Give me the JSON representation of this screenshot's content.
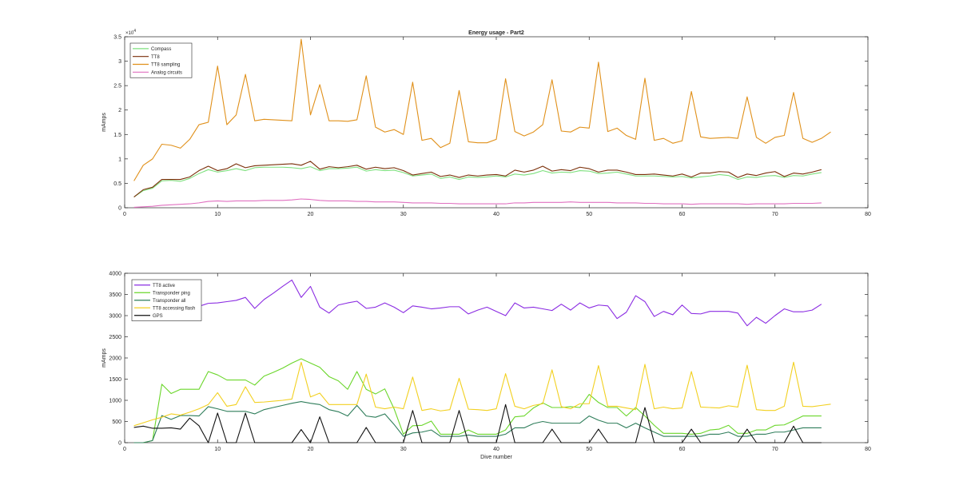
{
  "chart_data": [
    {
      "type": "line",
      "title": "Energy usage - Part2",
      "xlabel": "",
      "ylabel": "mAmps",
      "xlim": [
        0,
        80
      ],
      "ylim": [
        0,
        35000
      ],
      "xticks": [
        0,
        10,
        20,
        30,
        40,
        50,
        60,
        70,
        80
      ],
      "yticks": [
        0,
        5000,
        10000,
        15000,
        20000,
        25000,
        30000,
        35000
      ],
      "ytick_labels": [
        "0",
        "0.5",
        "1",
        "1.5",
        "2",
        "2.5",
        "3",
        "3.5"
      ],
      "yexponent_base": "×10",
      "yexponent_power": "4",
      "legend_position": "top-left",
      "grid": false,
      "x_start": 1,
      "series": [
        {
          "name": "Compass",
          "color": "#7ee07e",
          "values": [
            2200,
            3500,
            4000,
            5500,
            5600,
            5400,
            6000,
            7000,
            7800,
            7300,
            7600,
            8000,
            7600,
            8200,
            8300,
            8300,
            8300,
            8200,
            8000,
            8400,
            7600,
            8000,
            8000,
            8100,
            8300,
            7500,
            7800,
            7600,
            7700,
            7200,
            6500,
            6700,
            6900,
            6000,
            6300,
            5800,
            6300,
            6200,
            6300,
            6500,
            6300,
            6900,
            6700,
            7000,
            7600,
            7100,
            7300,
            7200,
            7600,
            7500,
            7000,
            7100,
            7300,
            6900,
            6500,
            6500,
            6500,
            6400,
            6300,
            6400,
            6100,
            6300,
            6500,
            6800,
            6600,
            5800,
            6300,
            6200,
            6500,
            6600,
            6200,
            6600,
            6500,
            6900,
            7200
          ]
        },
        {
          "name": "TT8",
          "color": "#7a2e08",
          "values": [
            2200,
            3700,
            4200,
            5800,
            5800,
            5800,
            6300,
            7600,
            8500,
            7600,
            8000,
            9000,
            8200,
            8600,
            8700,
            8800,
            8900,
            9000,
            8700,
            9500,
            7900,
            8400,
            8200,
            8400,
            8700,
            7900,
            8300,
            8000,
            8200,
            7600,
            6700,
            7000,
            7300,
            6400,
            6700,
            6200,
            6700,
            6500,
            6700,
            6800,
            6500,
            7700,
            7300,
            7700,
            8500,
            7500,
            7800,
            7600,
            8300,
            8000,
            7300,
            7700,
            7700,
            7300,
            6800,
            6800,
            6900,
            6700,
            6500,
            6900,
            6300,
            7100,
            7100,
            7400,
            7300,
            6200,
            6900,
            6600,
            7100,
            7400,
            6400,
            7100,
            6900,
            7300,
            7800
          ]
        },
        {
          "name": "TT8 sampling",
          "color": "#e0901a",
          "values": [
            5500,
            8700,
            10000,
            13000,
            12800,
            12200,
            14000,
            17000,
            17500,
            29000,
            17000,
            19000,
            27300,
            17800,
            18100,
            18000,
            17900,
            17800,
            34500,
            19000,
            25200,
            17800,
            17800,
            17700,
            18000,
            27000,
            16500,
            15500,
            16000,
            15000,
            25700,
            13800,
            14200,
            12300,
            13200,
            24000,
            13500,
            13300,
            13300,
            14000,
            26400,
            15600,
            14700,
            15500,
            17000,
            26200,
            15700,
            15500,
            16500,
            16300,
            29800,
            15600,
            16300,
            14800,
            14000,
            26500,
            13800,
            14200,
            13200,
            13700,
            23800,
            14500,
            14200,
            14300,
            14400,
            14200,
            22700,
            14400,
            13200,
            14400,
            14800,
            23600,
            14200,
            13400,
            14200,
            15500
          ]
        },
        {
          "name": "Analog circuits",
          "color": "#e070c0",
          "values": [
            100,
            200,
            300,
            500,
            600,
            700,
            800,
            1000,
            1300,
            1400,
            1300,
            1400,
            1400,
            1400,
            1500,
            1500,
            1500,
            1600,
            1800,
            1700,
            1500,
            1400,
            1400,
            1400,
            1300,
            1300,
            1200,
            1200,
            1200,
            1100,
            1000,
            1000,
            1000,
            900,
            900,
            800,
            800,
            800,
            800,
            800,
            800,
            1000,
            1000,
            1100,
            1100,
            1100,
            1100,
            1200,
            1100,
            1100,
            1100,
            1100,
            1000,
            1000,
            1000,
            900,
            900,
            800,
            800,
            800,
            700,
            800,
            800,
            800,
            800,
            800,
            700,
            800,
            800,
            800,
            800,
            900,
            900,
            900,
            1000
          ]
        }
      ]
    },
    {
      "type": "line",
      "title": "",
      "xlabel": "Dive number",
      "ylabel": "mAmps",
      "xlim": [
        0,
        80
      ],
      "ylim": [
        0,
        4000
      ],
      "xticks": [
        0,
        10,
        20,
        30,
        40,
        50,
        60,
        70,
        80
      ],
      "yticks": [
        0,
        500,
        1000,
        1500,
        2000,
        2500,
        3000,
        3500,
        4000
      ],
      "ytick_labels": [
        "0",
        "500",
        "1000",
        "1500",
        "2000",
        "2500",
        "3000",
        "3500",
        "4000"
      ],
      "legend_position": "top-left",
      "grid": false,
      "x_start": 1,
      "series": [
        {
          "name": "TT8 active",
          "color": "#8a2be2",
          "values": [
            2950,
            3050,
            3150,
            3200,
            3220,
            3280,
            3230,
            3220,
            3290,
            3300,
            3330,
            3360,
            3430,
            3170,
            3380,
            3530,
            3690,
            3840,
            3430,
            3690,
            3200,
            3060,
            3250,
            3300,
            3340,
            3170,
            3200,
            3300,
            3200,
            3070,
            3230,
            3200,
            3160,
            3180,
            3210,
            3210,
            3040,
            3130,
            3200,
            3100,
            3000,
            3300,
            3180,
            3200,
            3160,
            3120,
            3270,
            3130,
            3300,
            3180,
            3250,
            3230,
            2930,
            3080,
            3470,
            3330,
            2980,
            3100,
            3020,
            3250,
            3050,
            3040,
            3100,
            3100,
            3100,
            3060,
            2760,
            2960,
            2820,
            3000,
            3160,
            3090,
            3090,
            3130,
            3270
          ]
        },
        {
          "name": "Transponder ping",
          "color": "#6ad62a",
          "values": [
            0,
            0,
            50,
            1380,
            1160,
            1260,
            1260,
            1260,
            1680,
            1600,
            1480,
            1480,
            1480,
            1360,
            1570,
            1660,
            1760,
            1880,
            1980,
            1880,
            1780,
            1560,
            1460,
            1260,
            1680,
            1260,
            1150,
            1270,
            800,
            200,
            400,
            410,
            510,
            200,
            200,
            200,
            300,
            200,
            200,
            200,
            300,
            610,
            630,
            820,
            940,
            830,
            830,
            850,
            830,
            1140,
            950,
            830,
            830,
            630,
            830,
            630,
            410,
            220,
            220,
            220,
            200,
            220,
            300,
            320,
            410,
            220,
            220,
            300,
            300,
            410,
            420,
            520,
            630,
            630,
            630
          ]
        },
        {
          "name": "Transponder all",
          "color": "#2e7d5a",
          "values": [
            0,
            0,
            50,
            640,
            550,
            640,
            640,
            630,
            850,
            800,
            740,
            740,
            740,
            680,
            780,
            830,
            880,
            930,
            970,
            930,
            900,
            780,
            730,
            630,
            880,
            630,
            600,
            680,
            430,
            150,
            230,
            250,
            300,
            150,
            150,
            150,
            180,
            150,
            150,
            150,
            200,
            350,
            350,
            450,
            500,
            460,
            460,
            460,
            460,
            630,
            530,
            460,
            460,
            350,
            460,
            350,
            250,
            150,
            150,
            150,
            150,
            150,
            200,
            200,
            250,
            150,
            150,
            200,
            200,
            250,
            250,
            300,
            350,
            350,
            350
          ]
        },
        {
          "name": "TT8 accessing flash",
          "color": "#f2d020",
          "values": [
            400,
            470,
            540,
            600,
            680,
            650,
            720,
            800,
            900,
            1180,
            860,
            900,
            1320,
            950,
            960,
            980,
            1000,
            1030,
            1900,
            1080,
            1170,
            900,
            900,
            900,
            900,
            1620,
            840,
            800,
            840,
            800,
            1550,
            760,
            800,
            750,
            780,
            1520,
            790,
            780,
            760,
            800,
            1630,
            860,
            800,
            880,
            920,
            1720,
            850,
            800,
            920,
            920,
            1820,
            860,
            860,
            820,
            780,
            1850,
            800,
            840,
            800,
            820,
            1680,
            840,
            830,
            820,
            870,
            840,
            1830,
            780,
            760,
            760,
            860,
            1900,
            860,
            850,
            880,
            910
          ]
        },
        {
          "name": "GPS",
          "color": "#111111",
          "values": [
            360,
            390,
            340,
            340,
            350,
            320,
            580,
            400,
            0,
            700,
            0,
            0,
            700,
            0,
            0,
            0,
            0,
            0,
            310,
            0,
            610,
            0,
            0,
            0,
            0,
            360,
            0,
            0,
            0,
            0,
            760,
            0,
            0,
            0,
            0,
            760,
            0,
            0,
            0,
            0,
            900,
            0,
            0,
            0,
            0,
            320,
            0,
            0,
            0,
            0,
            320,
            0,
            0,
            0,
            0,
            830,
            0,
            0,
            0,
            0,
            320,
            0,
            0,
            0,
            0,
            0,
            320,
            0,
            0,
            0,
            0,
            390,
            0,
            0,
            0
          ]
        }
      ]
    }
  ]
}
